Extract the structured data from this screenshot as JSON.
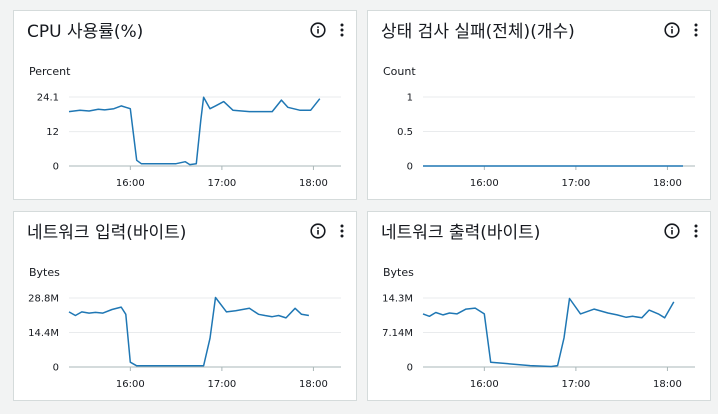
{
  "widgets": [
    {
      "title": "CPU 사용률(%)",
      "unit": "Percent",
      "chart_data": {
        "type": "line",
        "ylim": [
          0,
          24.1
        ],
        "yticks": [
          "24.1",
          "12",
          "0"
        ],
        "ytick_values": [
          24.1,
          12,
          0
        ],
        "xticks": [
          "16:00",
          "17:00",
          "18:00"
        ],
        "xtick_values": [
          16.0,
          17.0,
          18.0
        ],
        "xlim": [
          15.33,
          18.17
        ],
        "x": [
          15.33,
          15.45,
          15.55,
          15.65,
          15.72,
          15.82,
          15.9,
          16.0,
          16.07,
          16.12,
          16.17,
          16.3,
          16.5,
          16.6,
          16.65,
          16.72,
          16.77,
          16.8,
          16.87,
          16.93,
          17.02,
          17.12,
          17.3,
          17.55,
          17.65,
          17.72,
          17.85,
          17.97,
          18.07
        ],
        "series": [
          {
            "values": [
              19,
              19.5,
              19.2,
              19.8,
              19.6,
              20,
              21,
              20,
              2,
              0.8,
              0.8,
              0.8,
              0.8,
              1.5,
              0.5,
              0.8,
              16,
              24,
              20,
              21,
              22.5,
              19.5,
              19,
              19,
              23,
              20.5,
              19.5,
              19.5,
              23.5
            ]
          }
        ],
        "grid": true
      }
    },
    {
      "title": "상태 검사 실패(전체)(개수)",
      "unit": "Count",
      "chart_data": {
        "type": "line",
        "ylim": [
          0,
          1
        ],
        "yticks": [
          "1",
          "0.5",
          "0"
        ],
        "ytick_values": [
          1,
          0.5,
          0
        ],
        "xticks": [
          "16:00",
          "17:00",
          "18:00"
        ],
        "xtick_values": [
          16.0,
          17.0,
          18.0
        ],
        "xlim": [
          15.33,
          18.17
        ],
        "x": [
          15.33,
          18.17
        ],
        "series": [
          {
            "values": [
              0,
              0
            ]
          }
        ],
        "grid": true
      }
    },
    {
      "title": "네트워크 입력(바이트)",
      "unit": "Bytes",
      "chart_data": {
        "type": "line",
        "ylim": [
          0,
          28.8
        ],
        "yticks": [
          "28.8M",
          "14.4M",
          "0"
        ],
        "ytick_values": [
          28.8,
          14.4,
          0
        ],
        "xticks": [
          "16:00",
          "17:00",
          "18:00"
        ],
        "xtick_values": [
          16.0,
          17.0,
          18.0
        ],
        "xlim": [
          15.33,
          18.17
        ],
        "x": [
          15.33,
          15.4,
          15.47,
          15.55,
          15.62,
          15.7,
          15.8,
          15.9,
          15.95,
          16.0,
          16.07,
          16.5,
          16.8,
          16.87,
          16.93,
          17.05,
          17.15,
          17.3,
          17.4,
          17.47,
          17.55,
          17.62,
          17.7,
          17.8,
          17.87,
          17.95
        ],
        "series": [
          {
            "values": [
              23,
              21.5,
              23,
              22.5,
              22.8,
              22.5,
              24,
              25,
              22,
              2,
              0.5,
              0.5,
              0.5,
              12,
              29,
              23,
              23.5,
              24.5,
              22,
              21.5,
              21,
              21.5,
              20.5,
              24.5,
              22,
              21.5
            ]
          }
        ],
        "grid": true
      }
    },
    {
      "title": "네트워크 출력(바이트)",
      "unit": "Bytes",
      "chart_data": {
        "type": "line",
        "ylim": [
          0,
          14.3
        ],
        "yticks": [
          "14.3M",
          "7.14M",
          "0"
        ],
        "ytick_values": [
          14.3,
          7.14,
          0
        ],
        "xticks": [
          "16:00",
          "17:00",
          "18:00"
        ],
        "xtick_values": [
          16.0,
          17.0,
          18.0
        ],
        "xlim": [
          15.33,
          18.17
        ],
        "x": [
          15.33,
          15.4,
          15.47,
          15.55,
          15.62,
          15.7,
          15.8,
          15.9,
          16.0,
          16.07,
          16.5,
          16.73,
          16.8,
          16.87,
          16.93,
          17.05,
          17.2,
          17.35,
          17.45,
          17.55,
          17.62,
          17.72,
          17.8,
          17.9,
          17.97,
          18.07
        ],
        "series": [
          {
            "values": [
              11,
              10.5,
              11.3,
              10.8,
              11.2,
              11,
              12,
              12.2,
              11,
              1,
              0.3,
              0.1,
              0.3,
              6,
              14.2,
              11,
              12,
              11.2,
              10.8,
              10.3,
              10.5,
              10.2,
              11.8,
              11,
              10.2,
              13.5
            ]
          }
        ],
        "grid": true
      }
    }
  ]
}
